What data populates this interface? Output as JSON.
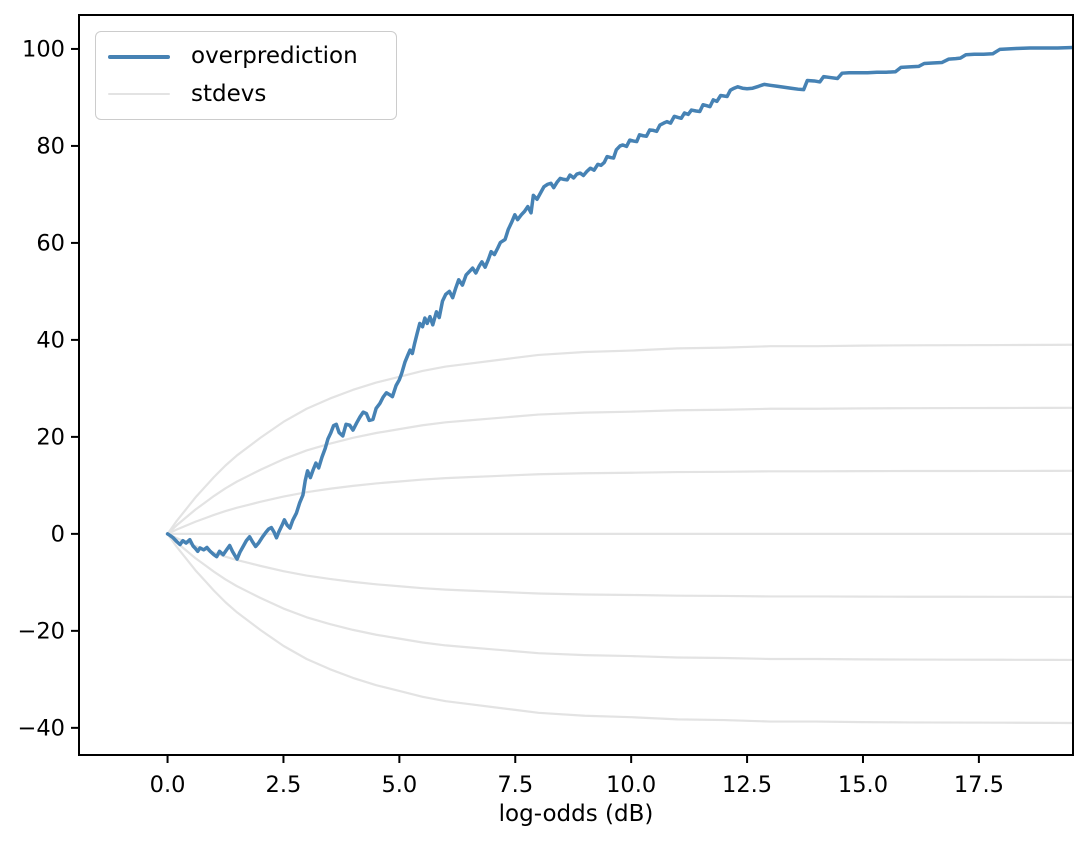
{
  "figure": {
    "xlabel": "log-odds (dB)",
    "legend": {
      "position": "upper left",
      "entries": [
        {
          "label": "overprediction",
          "color": "#4682b4",
          "line_width": 4
        },
        {
          "label": "stdevs",
          "color": "#e3e3e3",
          "line_width": 2.2
        }
      ]
    }
  },
  "chart_data": {
    "type": "line",
    "title": "",
    "xlabel": "log-odds (dB)",
    "ylabel": "",
    "grid": false,
    "legend_position": "upper left",
    "xlim": [
      -1.91,
      19.53
    ],
    "ylim": [
      -45.6,
      107.0
    ],
    "x_ticks": [
      0.0,
      2.5,
      5.0,
      7.5,
      10.0,
      12.5,
      15.0,
      17.5
    ],
    "x_tick_labels": [
      "0.0",
      "2.5",
      "5.0",
      "7.5",
      "10.0",
      "12.5",
      "15.0",
      "17.5"
    ],
    "y_ticks": [
      -40,
      -20,
      0,
      20,
      40,
      60,
      80,
      100
    ],
    "y_tick_labels": [
      "−40",
      "−20",
      "0",
      "20",
      "40",
      "60",
      "80",
      "100"
    ],
    "series": [
      {
        "name": "overprediction",
        "color": "#4682b4",
        "width": 3.5,
        "points": [
          [
            0,
            0
          ],
          [
            0.05,
            -0.3
          ],
          [
            0.12,
            -0.8
          ],
          [
            0.2,
            -1.6
          ],
          [
            0.27,
            -2.2
          ],
          [
            0.33,
            -1.4
          ],
          [
            0.4,
            -1.9
          ],
          [
            0.48,
            -1.2
          ],
          [
            0.55,
            -2.5
          ],
          [
            0.6,
            -3.0
          ],
          [
            0.65,
            -3.6
          ],
          [
            0.7,
            -2.9
          ],
          [
            0.78,
            -3.3
          ],
          [
            0.85,
            -2.8
          ],
          [
            0.92,
            -3.6
          ],
          [
            1.0,
            -4.3
          ],
          [
            1.06,
            -4.7
          ],
          [
            1.12,
            -3.6
          ],
          [
            1.2,
            -4.3
          ],
          [
            1.28,
            -3.2
          ],
          [
            1.34,
            -2.4
          ],
          [
            1.4,
            -3.6
          ],
          [
            1.46,
            -4.6
          ],
          [
            1.5,
            -5.2
          ],
          [
            1.56,
            -3.8
          ],
          [
            1.63,
            -2.6
          ],
          [
            1.7,
            -1.4
          ],
          [
            1.77,
            -0.6
          ],
          [
            1.83,
            -1.6
          ],
          [
            1.9,
            -2.6
          ],
          [
            1.97,
            -1.8
          ],
          [
            2.05,
            -0.6
          ],
          [
            2.12,
            0.3
          ],
          [
            2.18,
            1.0
          ],
          [
            2.24,
            1.3
          ],
          [
            2.3,
            0.3
          ],
          [
            2.35,
            -0.8
          ],
          [
            2.4,
            0.4
          ],
          [
            2.47,
            1.8
          ],
          [
            2.52,
            2.9
          ],
          [
            2.58,
            1.8
          ],
          [
            2.64,
            1.2
          ],
          [
            2.7,
            2.8
          ],
          [
            2.78,
            4.3
          ],
          [
            2.85,
            6.4
          ],
          [
            2.92,
            8.0
          ],
          [
            2.97,
            11.0
          ],
          [
            3.02,
            13.0
          ],
          [
            3.08,
            11.6
          ],
          [
            3.14,
            13.2
          ],
          [
            3.2,
            14.6
          ],
          [
            3.26,
            13.6
          ],
          [
            3.33,
            15.8
          ],
          [
            3.4,
            17.6
          ],
          [
            3.46,
            19.6
          ],
          [
            3.52,
            20.8
          ],
          [
            3.58,
            22.3
          ],
          [
            3.64,
            22.6
          ],
          [
            3.7,
            20.9
          ],
          [
            3.78,
            20.2
          ],
          [
            3.85,
            22.6
          ],
          [
            3.93,
            22.4
          ],
          [
            4.0,
            21.4
          ],
          [
            4.08,
            22.9
          ],
          [
            4.15,
            24.1
          ],
          [
            4.22,
            25.1
          ],
          [
            4.29,
            24.8
          ],
          [
            4.35,
            23.4
          ],
          [
            4.43,
            23.6
          ],
          [
            4.5,
            25.9
          ],
          [
            4.58,
            26.9
          ],
          [
            4.65,
            28.2
          ],
          [
            4.72,
            29.1
          ],
          [
            4.79,
            28.7
          ],
          [
            4.85,
            28.3
          ],
          [
            4.93,
            30.6
          ],
          [
            5.0,
            31.8
          ],
          [
            5.05,
            33.1
          ],
          [
            5.12,
            35.4
          ],
          [
            5.18,
            36.8
          ],
          [
            5.23,
            37.9
          ],
          [
            5.28,
            37.2
          ],
          [
            5.33,
            39.3
          ],
          [
            5.38,
            41.2
          ],
          [
            5.44,
            43.4
          ],
          [
            5.5,
            42.7
          ],
          [
            5.55,
            44.5
          ],
          [
            5.6,
            43.4
          ],
          [
            5.66,
            44.8
          ],
          [
            5.72,
            43.1
          ],
          [
            5.8,
            45.8
          ],
          [
            5.86,
            44.6
          ],
          [
            5.93,
            48.0
          ],
          [
            6.0,
            49.4
          ],
          [
            6.08,
            50.0
          ],
          [
            6.15,
            48.7
          ],
          [
            6.22,
            50.8
          ],
          [
            6.28,
            52.4
          ],
          [
            6.36,
            51.3
          ],
          [
            6.44,
            53.4
          ],
          [
            6.52,
            54.2
          ],
          [
            6.58,
            54.8
          ],
          [
            6.65,
            53.8
          ],
          [
            6.72,
            55.2
          ],
          [
            6.78,
            56.1
          ],
          [
            6.85,
            55.0
          ],
          [
            6.92,
            56.6
          ],
          [
            6.98,
            58.2
          ],
          [
            7.05,
            57.6
          ],
          [
            7.12,
            58.9
          ],
          [
            7.18,
            60.1
          ],
          [
            7.28,
            60.7
          ],
          [
            7.35,
            62.8
          ],
          [
            7.42,
            64.2
          ],
          [
            7.49,
            65.8
          ],
          [
            7.55,
            64.8
          ],
          [
            7.63,
            65.8
          ],
          [
            7.7,
            66.5
          ],
          [
            7.77,
            67.5
          ],
          [
            7.84,
            66.2
          ],
          [
            7.89,
            69.8
          ],
          [
            7.97,
            69.0
          ],
          [
            8.05,
            70.4
          ],
          [
            8.12,
            71.6
          ],
          [
            8.2,
            72.1
          ],
          [
            8.27,
            72.3
          ],
          [
            8.33,
            71.4
          ],
          [
            8.4,
            72.5
          ],
          [
            8.47,
            73.3
          ],
          [
            8.55,
            73.1
          ],
          [
            8.62,
            73.0
          ],
          [
            8.68,
            74.0
          ],
          [
            8.76,
            73.4
          ],
          [
            8.83,
            74.2
          ],
          [
            8.9,
            74.4
          ],
          [
            8.97,
            73.9
          ],
          [
            9.05,
            74.8
          ],
          [
            9.12,
            75.4
          ],
          [
            9.2,
            75.0
          ],
          [
            9.28,
            76.2
          ],
          [
            9.35,
            76.0
          ],
          [
            9.42,
            76.6
          ],
          [
            9.48,
            77.8
          ],
          [
            9.56,
            77.6
          ],
          [
            9.62,
            77.5
          ],
          [
            9.68,
            79.2
          ],
          [
            9.76,
            80.0
          ],
          [
            9.82,
            80.2
          ],
          [
            9.9,
            79.9
          ],
          [
            9.97,
            81.2
          ],
          [
            10.05,
            81.0
          ],
          [
            10.12,
            80.9
          ],
          [
            10.18,
            82.3
          ],
          [
            10.26,
            82.1
          ],
          [
            10.33,
            82.0
          ],
          [
            10.4,
            83.3
          ],
          [
            10.48,
            83.2
          ],
          [
            10.55,
            83.0
          ],
          [
            10.62,
            84.3
          ],
          [
            10.7,
            84.7
          ],
          [
            10.77,
            85.0
          ],
          [
            10.85,
            84.7
          ],
          [
            10.93,
            86.1
          ],
          [
            11.0,
            85.9
          ],
          [
            11.08,
            85.7
          ],
          [
            11.15,
            86.8
          ],
          [
            11.23,
            86.5
          ],
          [
            11.3,
            87.4
          ],
          [
            11.4,
            87.2
          ],
          [
            11.48,
            87.1
          ],
          [
            11.55,
            88.5
          ],
          [
            11.63,
            88.3
          ],
          [
            11.7,
            88.1
          ],
          [
            11.77,
            89.5
          ],
          [
            11.85,
            89.2
          ],
          [
            11.93,
            90.4
          ],
          [
            12.0,
            90.3
          ],
          [
            12.07,
            90.2
          ],
          [
            12.14,
            91.5
          ],
          [
            12.22,
            91.9
          ],
          [
            12.3,
            92.2
          ],
          [
            12.4,
            91.9
          ],
          [
            12.5,
            91.8
          ],
          [
            12.62,
            91.9
          ],
          [
            12.75,
            92.3
          ],
          [
            12.87,
            92.7
          ],
          [
            13.0,
            92.5
          ],
          [
            13.15,
            92.3
          ],
          [
            13.3,
            92.1
          ],
          [
            13.45,
            91.9
          ],
          [
            13.6,
            91.7
          ],
          [
            13.72,
            91.6
          ],
          [
            13.8,
            93.5
          ],
          [
            13.95,
            93.4
          ],
          [
            14.07,
            93.2
          ],
          [
            14.15,
            94.3
          ],
          [
            14.3,
            94.1
          ],
          [
            14.45,
            93.9
          ],
          [
            14.55,
            95.0
          ],
          [
            14.7,
            95.1
          ],
          [
            14.9,
            95.1
          ],
          [
            15.1,
            95.1
          ],
          [
            15.3,
            95.2
          ],
          [
            15.5,
            95.2
          ],
          [
            15.7,
            95.3
          ],
          [
            15.82,
            96.2
          ],
          [
            16.0,
            96.3
          ],
          [
            16.2,
            96.4
          ],
          [
            16.32,
            97.0
          ],
          [
            16.5,
            97.1
          ],
          [
            16.7,
            97.2
          ],
          [
            16.85,
            97.9
          ],
          [
            17.0,
            98.0
          ],
          [
            17.1,
            98.1
          ],
          [
            17.22,
            98.8
          ],
          [
            17.4,
            98.9
          ],
          [
            17.6,
            98.9
          ],
          [
            17.8,
            99.0
          ],
          [
            17.95,
            99.9
          ],
          [
            18.1,
            100.0
          ],
          [
            18.3,
            100.1
          ],
          [
            18.6,
            100.2
          ],
          [
            18.9,
            100.2
          ],
          [
            19.2,
            100.2
          ],
          [
            19.53,
            100.3
          ]
        ]
      }
    ],
    "stdev_curves": {
      "name": "stdevs",
      "color": "#e3e3e3",
      "width": 2.2,
      "multipliers": [
        -3,
        -2,
        -1,
        0,
        1,
        2,
        3
      ],
      "x": [
        0,
        0.2,
        0.4,
        0.6,
        0.8,
        1.0,
        1.25,
        1.5,
        1.75,
        2.0,
        2.5,
        3.0,
        3.5,
        4.0,
        4.5,
        5.0,
        5.5,
        6.0,
        6.5,
        7.0,
        7.5,
        8.0,
        9.0,
        10.0,
        11.0,
        12.0,
        13.0,
        14.0,
        15.0,
        16.0,
        17.0,
        18.0,
        19.0,
        19.53
      ],
      "sigma": [
        0,
        0.9,
        1.7,
        2.5,
        3.2,
        3.9,
        4.7,
        5.4,
        6.0,
        6.6,
        7.7,
        8.6,
        9.3,
        9.9,
        10.4,
        10.8,
        11.2,
        11.5,
        11.7,
        11.9,
        12.1,
        12.3,
        12.5,
        12.6,
        12.75,
        12.8,
        12.9,
        12.9,
        12.94,
        12.96,
        12.97,
        12.98,
        12.99,
        13.0
      ]
    }
  }
}
